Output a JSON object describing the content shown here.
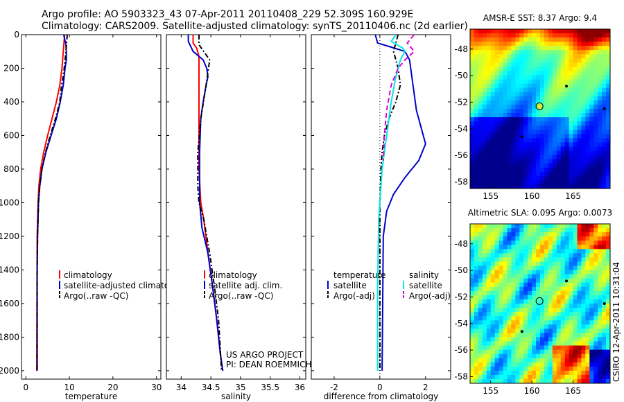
{
  "header": {
    "line1": "Argo profile: AO 5903323_43 07-Apr-2011 20110408_229 52.309S 160.929E",
    "line2": "Climatology: CARS2009. Satellite-adjusted climatology: synTS_20110406.nc (2d earlier)"
  },
  "colors": {
    "climatology": "#ff0000",
    "satellite": "#0000cc",
    "argo": "#000000",
    "satellite_salinity_diff": "#00e5e5",
    "argo_salinity_diff": "#dd00dd"
  },
  "chart_data": [
    {
      "type": "line",
      "id": "temperature",
      "xlabel": "temperature",
      "xlim": [
        -1,
        31
      ],
      "ylim": [
        0,
        2050
      ],
      "y_reversed": true,
      "xticks": [
        0,
        10,
        20,
        30
      ],
      "yticks": [
        0,
        200,
        400,
        600,
        800,
        1000,
        1200,
        1400,
        1600,
        1800,
        2000
      ],
      "legend": [
        "climatology",
        "satellite-adjusted climatology",
        "Argo(..raw -QC)"
      ],
      "series": [
        {
          "name": "climatology",
          "color": "#ff0000",
          "dash": "solid",
          "x": [
            8.9,
            8.6,
            8.3,
            7.8,
            7.0,
            6.0,
            5.0,
            4.1,
            3.4,
            3.0,
            2.8,
            2.6,
            2.5
          ],
          "y": [
            0,
            100,
            200,
            300,
            400,
            500,
            600,
            700,
            800,
            900,
            1000,
            1200,
            2000
          ]
        },
        {
          "name": "satellite-adjusted climatology",
          "color": "#0000cc",
          "dash": "solid",
          "x": [
            8.7,
            9.2,
            9.3,
            9.3,
            9.0,
            8.6,
            7.9,
            7.0,
            5.8,
            4.6,
            3.7,
            3.2,
            2.9,
            2.7,
            2.6,
            2.6
          ],
          "y": [
            0,
            60,
            100,
            150,
            200,
            300,
            400,
            500,
            600,
            700,
            800,
            900,
            1000,
            1200,
            1400,
            2000
          ]
        },
        {
          "name": "Argo(..raw -QC)",
          "color": "#000000",
          "dash": "dashdot",
          "x": [
            9.5,
            9.2,
            8.8,
            8.5,
            8.2,
            7.8,
            6.8,
            5.6,
            4.5,
            3.7,
            3.2,
            2.9,
            2.7,
            2.6,
            2.6
          ],
          "y": [
            0,
            100,
            200,
            260,
            300,
            400,
            500,
            600,
            700,
            800,
            900,
            1000,
            1200,
            1400,
            2000
          ]
        }
      ]
    },
    {
      "type": "line",
      "id": "salinity",
      "xlabel": "salinity",
      "xlim": [
        33.75,
        36.1
      ],
      "ylim": [
        0,
        2050
      ],
      "y_reversed": true,
      "xticks": [
        34,
        34.5,
        35,
        35.5,
        36
      ],
      "xtick_labels": [
        "34",
        "34.5",
        "35",
        "35.5",
        "36"
      ],
      "legend": [
        "climatology",
        "satellite adj. clim.",
        "Argo(..raw -QC)"
      ],
      "annotation": [
        "US ARGO PROJECT",
        "PI: DEAN ROEMMICH"
      ],
      "series": [
        {
          "name": "climatology",
          "color": "#ff0000",
          "dash": "solid",
          "x": [
            34.2,
            34.2,
            34.26,
            34.3,
            34.3,
            34.3,
            34.3,
            34.3,
            34.33,
            34.38,
            34.45,
            34.53,
            34.6,
            34.66,
            34.7
          ],
          "y": [
            0,
            50,
            80,
            130,
            200,
            300,
            500,
            800,
            1000,
            1100,
            1300,
            1500,
            1700,
            1900,
            2000
          ]
        },
        {
          "name": "satellite adj. clim.",
          "color": "#0000cc",
          "dash": "solid",
          "x": [
            34.12,
            34.12,
            34.2,
            34.37,
            34.43,
            34.45,
            34.42,
            34.37,
            34.33,
            34.31,
            34.31,
            34.35,
            34.45,
            34.53,
            34.6,
            34.66,
            34.7
          ],
          "y": [
            0,
            40,
            100,
            150,
            200,
            250,
            300,
            400,
            500,
            700,
            1000,
            1150,
            1300,
            1500,
            1700,
            1900,
            2000
          ]
        },
        {
          "name": "Argo(..raw -QC)",
          "color": "#000000",
          "dash": "dashdot",
          "x": [
            34.3,
            34.3,
            34.4,
            34.48,
            34.46,
            34.42,
            34.33,
            34.28,
            34.28,
            34.3,
            34.38,
            34.48,
            34.56,
            34.63,
            34.68
          ],
          "y": [
            0,
            60,
            110,
            150,
            200,
            300,
            500,
            700,
            900,
            1000,
            1100,
            1300,
            1500,
            1700,
            2000
          ]
        }
      ]
    },
    {
      "type": "line",
      "id": "difference",
      "xlabel": "difference from climatology",
      "xlim": [
        -3,
        3.1
      ],
      "ylim": [
        0,
        2050
      ],
      "y_reversed": true,
      "xticks": [
        -2,
        0,
        2
      ],
      "legend_groups": [
        {
          "title": "temperature",
          "entries": [
            "satellite",
            "Argo(-adj)"
          ]
        },
        {
          "title": "salinity",
          "entries": [
            "satellite",
            "Argo(-adj)"
          ]
        }
      ],
      "series": [
        {
          "name": "temperature satellite",
          "color": "#0000cc",
          "dash": "solid",
          "x": [
            -0.2,
            -0.1,
            0.4,
            1.1,
            1.3,
            1.4,
            1.5,
            1.6,
            1.8,
            2.0,
            1.7,
            1.1,
            0.6,
            0.3,
            0.15,
            0.1
          ],
          "y": [
            0,
            50,
            70,
            100,
            150,
            250,
            350,
            450,
            550,
            650,
            750,
            850,
            950,
            1050,
            1200,
            2000
          ]
        },
        {
          "name": "temperature Argo(-adj)",
          "color": "#000000",
          "dash": "dashdot",
          "x": [
            0.8,
            0.6,
            0.8,
            0.9,
            0.7,
            0.4,
            0.2,
            0.1,
            0.05,
            0.0,
            0.0
          ],
          "y": [
            0,
            100,
            200,
            300,
            400,
            500,
            600,
            700,
            800,
            1000,
            2000
          ]
        },
        {
          "name": "salinity satellite",
          "color": "#00e5e5",
          "dash": "solid",
          "x": [
            0.7,
            0.5,
            1.0,
            1.1,
            0.9,
            0.7,
            0.5,
            0.3,
            0.1,
            -0.05,
            -0.1,
            -0.1
          ],
          "y": [
            0,
            40,
            80,
            100,
            150,
            250,
            400,
            600,
            800,
            1100,
            1500,
            2000
          ]
        },
        {
          "name": "salinity Argo(-adj)",
          "color": "#dd00dd",
          "dash": "dashed",
          "x": [
            1.5,
            1.2,
            1.5,
            1.1,
            0.8,
            0.5,
            0.3,
            0.2,
            0.15
          ],
          "y": [
            0,
            50,
            100,
            150,
            200,
            300,
            450,
            600,
            750
          ]
        }
      ]
    }
  ],
  "maps": [
    {
      "id": "sst-map",
      "title": "AMSR-E SST: 8.37 Argo: 9.4",
      "xticks": [
        155,
        160,
        165
      ],
      "yticks": [
        -48,
        -50,
        -52,
        -54,
        -56,
        -58
      ],
      "xlim": [
        152.5,
        169.5
      ],
      "ylim": [
        -58.5,
        -46.5
      ],
      "argo_position": {
        "lon": 160.929,
        "lat": -52.309
      }
    },
    {
      "id": "sla-map",
      "title": "Altimetric SLA: 0.095 Argo: 0.0073",
      "xticks": [
        155,
        160,
        165
      ],
      "yticks": [
        -48,
        -50,
        -52,
        -54,
        -56,
        -58
      ],
      "xlim": [
        152.5,
        169.5
      ],
      "ylim": [
        -58.5,
        -46.5
      ],
      "argo_position": {
        "lon": 160.929,
        "lat": -52.309
      },
      "side_label": "CSIRO 12-Apr-2011 10:31:04"
    }
  ]
}
